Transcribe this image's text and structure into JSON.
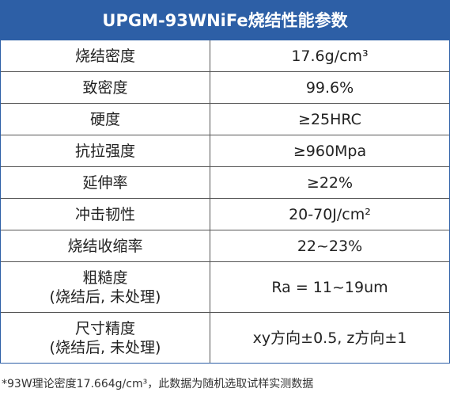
{
  "title": "UPGM-93WNiFe烧结性能参数",
  "table": {
    "rows": [
      [
        "烧结密度",
        "17.6g/cm³"
      ],
      [
        "致密度",
        "99.6%"
      ],
      [
        "硬度",
        "≥25HRC"
      ],
      [
        "抗拉强度",
        "≥960Mpa"
      ],
      [
        "延伸率",
        "≥22%"
      ],
      [
        "冲击韧性",
        "20-70J/cm²"
      ],
      [
        "烧结收缩率",
        "22~23%"
      ],
      [
        [
          "粗糙度",
          "(烧结后, 未处理)"
        ],
        "Ra = 11~19um"
      ],
      [
        [
          "尺寸精度",
          "(烧结后, 未处理)"
        ],
        "xy方向±0.5, z方向±1"
      ]
    ]
  },
  "footnote": "*93W理论密度17.664g/cm³，此数据为随机选取试样实测数据"
}
